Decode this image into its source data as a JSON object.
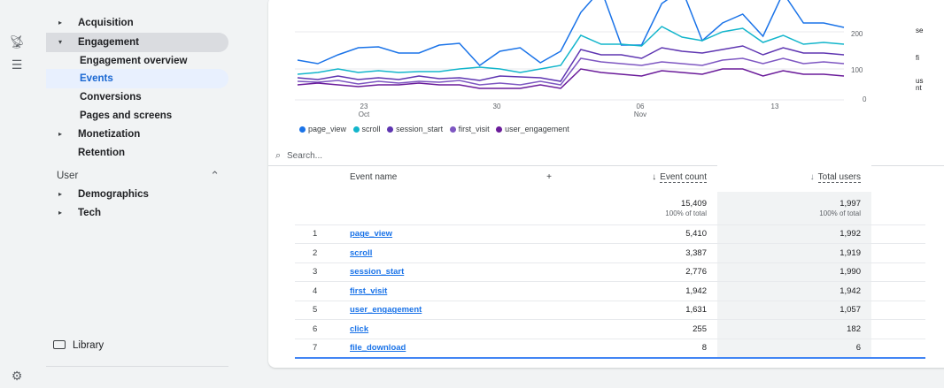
{
  "rail": {
    "icons": [
      "satellite-dish-icon",
      "list-icon",
      "gear-icon"
    ]
  },
  "nav": {
    "acquisition": "Acquisition",
    "engagement": "Engagement",
    "engagement_overview": "Engagement overview",
    "events": "Events",
    "conversions": "Conversions",
    "pages_and_screens": "Pages and screens",
    "monetization": "Monetization",
    "retention": "Retention",
    "user_section": "User",
    "demographics": "Demographics",
    "tech": "Tech",
    "library": "Library"
  },
  "chart": {
    "y_ticks": [
      "200",
      "100",
      "0"
    ],
    "x_ticks": [
      {
        "day": "23",
        "month": "Oct"
      },
      {
        "day": "30",
        "month": ""
      },
      {
        "day": "06",
        "month": "Nov"
      },
      {
        "day": "13",
        "month": ""
      }
    ],
    "legend": [
      "page_view",
      "scroll",
      "session_start",
      "first_visit",
      "user_engagement"
    ],
    "colors": [
      "#1a73e8",
      "#12b5cb",
      "#5e35b1",
      "#7e57c2",
      "#6a1b9a"
    ],
    "right_labels": [
      "se",
      "fi",
      "us",
      "nt"
    ]
  },
  "search": {
    "placeholder": "Search..."
  },
  "table": {
    "col_event": "Event name",
    "col_count": "Event count",
    "col_users": "Total users",
    "total_count": "15,409",
    "total_count_sub": "100% of total",
    "total_users": "1,997",
    "total_users_sub": "100% of total",
    "rows": [
      {
        "idx": "1",
        "name": "page_view",
        "count": "5,410",
        "users": "1,992"
      },
      {
        "idx": "2",
        "name": "scroll",
        "count": "3,387",
        "users": "1,919"
      },
      {
        "idx": "3",
        "name": "session_start",
        "count": "2,776",
        "users": "1,990"
      },
      {
        "idx": "4",
        "name": "first_visit",
        "count": "1,942",
        "users": "1,942"
      },
      {
        "idx": "5",
        "name": "user_engagement",
        "count": "1,631",
        "users": "1,057"
      },
      {
        "idx": "6",
        "name": "click",
        "count": "255",
        "users": "182"
      },
      {
        "idx": "7",
        "name": "file_download",
        "count": "8",
        "users": "6"
      }
    ]
  }
}
